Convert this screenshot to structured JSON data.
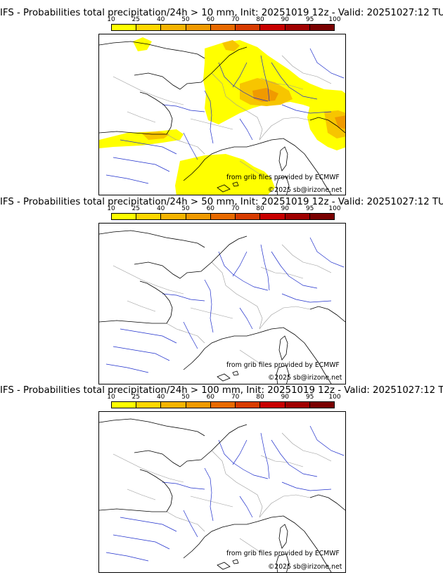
{
  "legend": {
    "ticks": [
      "10",
      "25",
      "40",
      "50",
      "60",
      "70",
      "80",
      "90",
      "95",
      "100"
    ],
    "colors": [
      "#ffff00",
      "#ffd700",
      "#f5b400",
      "#f09a00",
      "#e86a00",
      "#d83c00",
      "#c80000",
      "#a00000",
      "#7a0000"
    ]
  },
  "panels": [
    {
      "title": "IFS - Probabilities total precipitation/24h > 10 mm, Init: 20251019 12z - Valid: 20251027:12 TU",
      "credit_source": "from grib files provided by ECMWF",
      "credit_copyright": "©2025 sb@irizone.net"
    },
    {
      "title": "IFS - Probabilities total precipitation/24h > 50 mm, Init: 20251019 12z - Valid: 20251027:12 TU",
      "credit_source": "from grib files provided by ECMWF",
      "credit_copyright": "©2025 sb@irizone.net"
    },
    {
      "title": "IFS - Probabilities total precipitation/24h > 100 mm, Init: 20251019 12z - Valid: 20251027:12 TU",
      "credit_source": "from grib files provided by ECMWF",
      "credit_copyright": "©2025 sb@irizone.net"
    }
  ],
  "colors": {
    "coast": "#000000",
    "rivers": "#1f2fcc",
    "borders": "#9a9a9a",
    "precip_low": "#ffff00",
    "precip_mid": "#f7c500",
    "precip_high": "#f09a00"
  }
}
